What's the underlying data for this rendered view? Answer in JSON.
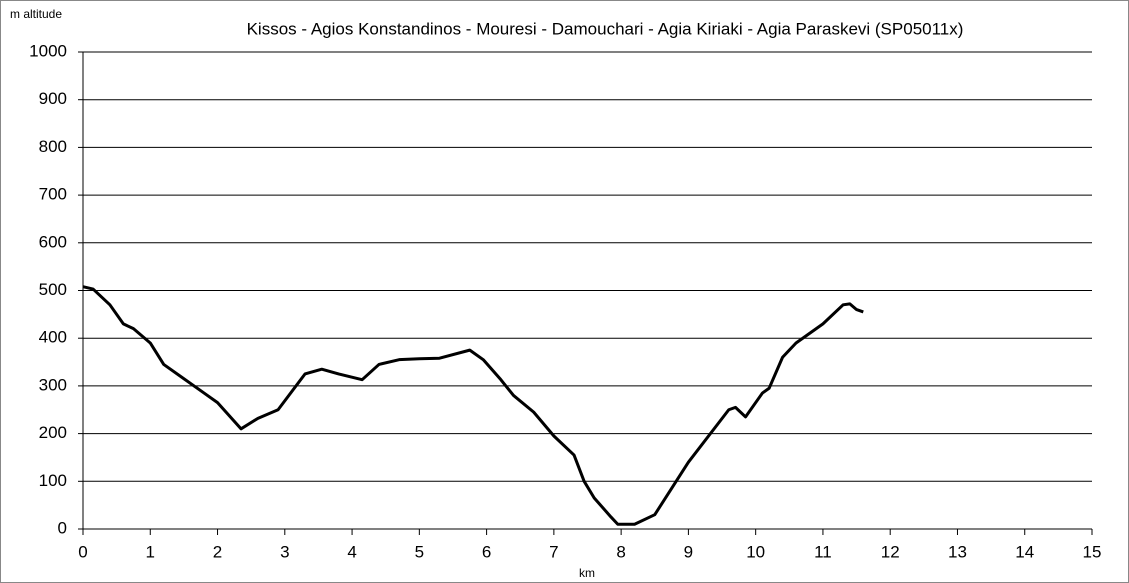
{
  "chart_data": {
    "type": "line",
    "title": "Kissos - Agios Konstandinos - Mouresi - Damouchari - Agia Kiriaki - Agia Paraskevi (SP05011x)",
    "y_label": "m altitude",
    "x_label": "km",
    "x": [
      0,
      0.15,
      0.4,
      0.6,
      0.75,
      1.0,
      1.2,
      1.5,
      1.8,
      2.0,
      2.35,
      2.6,
      2.9,
      3.3,
      3.55,
      3.8,
      4.15,
      4.4,
      4.7,
      5.0,
      5.3,
      5.75,
      5.95,
      6.2,
      6.4,
      6.7,
      7.0,
      7.3,
      7.45,
      7.6,
      7.85,
      7.95,
      8.2,
      8.5,
      9.0,
      9.6,
      9.7,
      9.85,
      10.1,
      10.2,
      10.4,
      10.6,
      11.0,
      11.3,
      11.4,
      11.5,
      11.6
    ],
    "series": [
      {
        "name": "altitude",
        "color": "#000000",
        "values": [
          508,
          503,
          470,
          430,
          420,
          390,
          345,
          315,
          285,
          265,
          210,
          232,
          250,
          325,
          335,
          325,
          313,
          345,
          355,
          357,
          358,
          375,
          355,
          315,
          280,
          245,
          195,
          155,
          100,
          65,
          25,
          10,
          10,
          30,
          140,
          250,
          255,
          235,
          285,
          295,
          360,
          390,
          430,
          470,
          472,
          460,
          455
        ]
      }
    ],
    "xlim": [
      0,
      15
    ],
    "xticks": [
      0,
      1,
      2,
      3,
      4,
      5,
      6,
      7,
      8,
      9,
      10,
      11,
      12,
      13,
      14,
      15
    ],
    "ylim": [
      0,
      1000
    ],
    "yticks": [
      0,
      100,
      200,
      300,
      400,
      500,
      600,
      700,
      800,
      900,
      1000
    ],
    "grid": true
  }
}
